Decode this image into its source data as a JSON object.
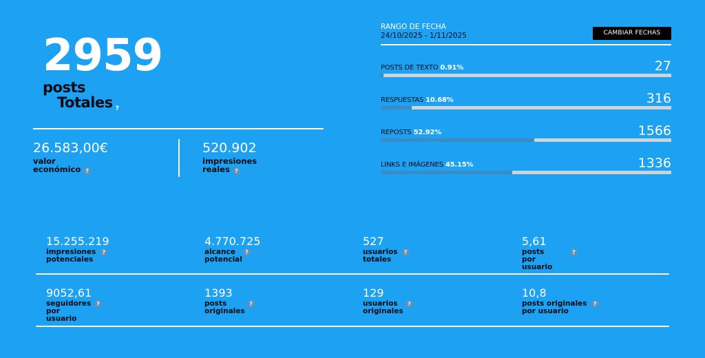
{
  "hero": {
    "total_posts": "2959",
    "label_line1": "posts",
    "label_line2": "Totales",
    "help": "?"
  },
  "kpis": [
    {
      "value": "26.583,00€",
      "label_line1": "valor",
      "label_line2": "económico",
      "help": "?"
    },
    {
      "value": "520.902",
      "label_line1": "impresiones",
      "label_line2": "reales",
      "help": "?"
    }
  ],
  "date_range": {
    "title": "RANGO DE FECHA",
    "dates": "24/10/2025 - 1/11/2025",
    "change_button": "CAMBIAR FECHAS"
  },
  "breakdown": [
    {
      "label": "POSTS DE TEXTO",
      "percent": "0.91%",
      "percent_value": 0.91,
      "count": "27"
    },
    {
      "label": "RESPUESTAS",
      "percent": "10.68%",
      "percent_value": 10.68,
      "count": "316"
    },
    {
      "label": "REPOSTS",
      "percent": "52.92%",
      "percent_value": 52.92,
      "count": "1566"
    },
    {
      "label": "LINKS E IMÁGENES",
      "percent": "45.15%",
      "percent_value": 45.15,
      "count": "1336"
    }
  ],
  "colors": {
    "background": "#1da1f2",
    "bar_fill": "#3b8bc4",
    "bar_track": "#cfd3d6",
    "label_dark": "#0b0b14",
    "button_bg": "#000000"
  },
  "stats_row1": [
    {
      "value": "15.255.219",
      "label_line1": "impresiones",
      "label_line2": "potenciales",
      "help": "?"
    },
    {
      "value": "4.770.725",
      "label_line1": "alcance",
      "label_line2": "potencial",
      "help": "?"
    },
    {
      "value": "527",
      "label_line1": "usuarios",
      "label_line2": "totales",
      "help": "?"
    },
    {
      "value": "5,61",
      "label_line1": "posts",
      "label_line2": "por usuario",
      "help": "?"
    }
  ],
  "stats_row2": [
    {
      "value": "9052,61",
      "label_line1": "seguidores",
      "label_line2": "por usuario",
      "help": "?"
    },
    {
      "value": "1393",
      "label_line1": "posts",
      "label_line2": "originales",
      "help": "?"
    },
    {
      "value": "129",
      "label_line1": "usuarios",
      "label_line2": "originales",
      "help": "?"
    },
    {
      "value": "10,8",
      "label_line1": "posts originales",
      "label_line2": "por usuario",
      "help": "?"
    }
  ]
}
